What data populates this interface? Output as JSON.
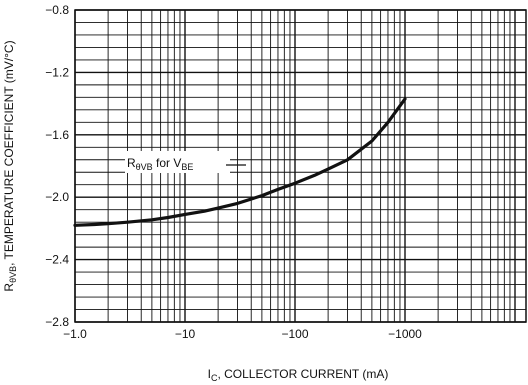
{
  "chart_data": {
    "type": "line",
    "title": "",
    "xlabel": {
      "main": "I",
      "sub": "C",
      "rest": ", COLLECTOR CURRENT (mA)"
    },
    "ylabel": {
      "main": "R",
      "sub": "θVB",
      "rest": ", TEMPERATURE COEFFICIENT (mV/°C)"
    },
    "x_scale": "log",
    "x_direction": "increasing magnitude of negative current",
    "xlim": [
      -1.0,
      -10000
    ],
    "ylim": [
      -2.8,
      -0.8
    ],
    "x_ticks": [
      {
        "value": -1.0,
        "label": "−1.0"
      },
      {
        "value": -10,
        "label": "−10"
      },
      {
        "value": -100,
        "label": "−100"
      },
      {
        "value": -1000,
        "label": "−1000"
      }
    ],
    "y_ticks": [
      {
        "value": -0.8,
        "label": "−0.8"
      },
      {
        "value": -1.2,
        "label": "−1.2"
      },
      {
        "value": -1.6,
        "label": "−1.6"
      },
      {
        "value": -2.0,
        "label": "−2.0"
      },
      {
        "value": -2.4,
        "label": "−2.4"
      },
      {
        "value": -2.8,
        "label": "−2.8"
      }
    ],
    "grid": true,
    "series": [
      {
        "name": "RθVB for VBE",
        "color": "#111111",
        "x": [
          -1.0,
          -1.5,
          -2,
          -3,
          -5,
          -7,
          -10,
          -15,
          -20,
          -30,
          -50,
          -70,
          -100,
          -150,
          -200,
          -300,
          -500,
          -700,
          -1000
        ],
        "y": [
          -2.18,
          -2.175,
          -2.17,
          -2.16,
          -2.145,
          -2.13,
          -2.11,
          -2.09,
          -2.07,
          -2.04,
          -1.99,
          -1.95,
          -1.91,
          -1.86,
          -1.82,
          -1.76,
          -1.64,
          -1.52,
          -1.37
        ]
      }
    ],
    "annotation": {
      "main": "R",
      "sub1": "θVB",
      "mid": " for V",
      "sub2": "BE"
    }
  }
}
